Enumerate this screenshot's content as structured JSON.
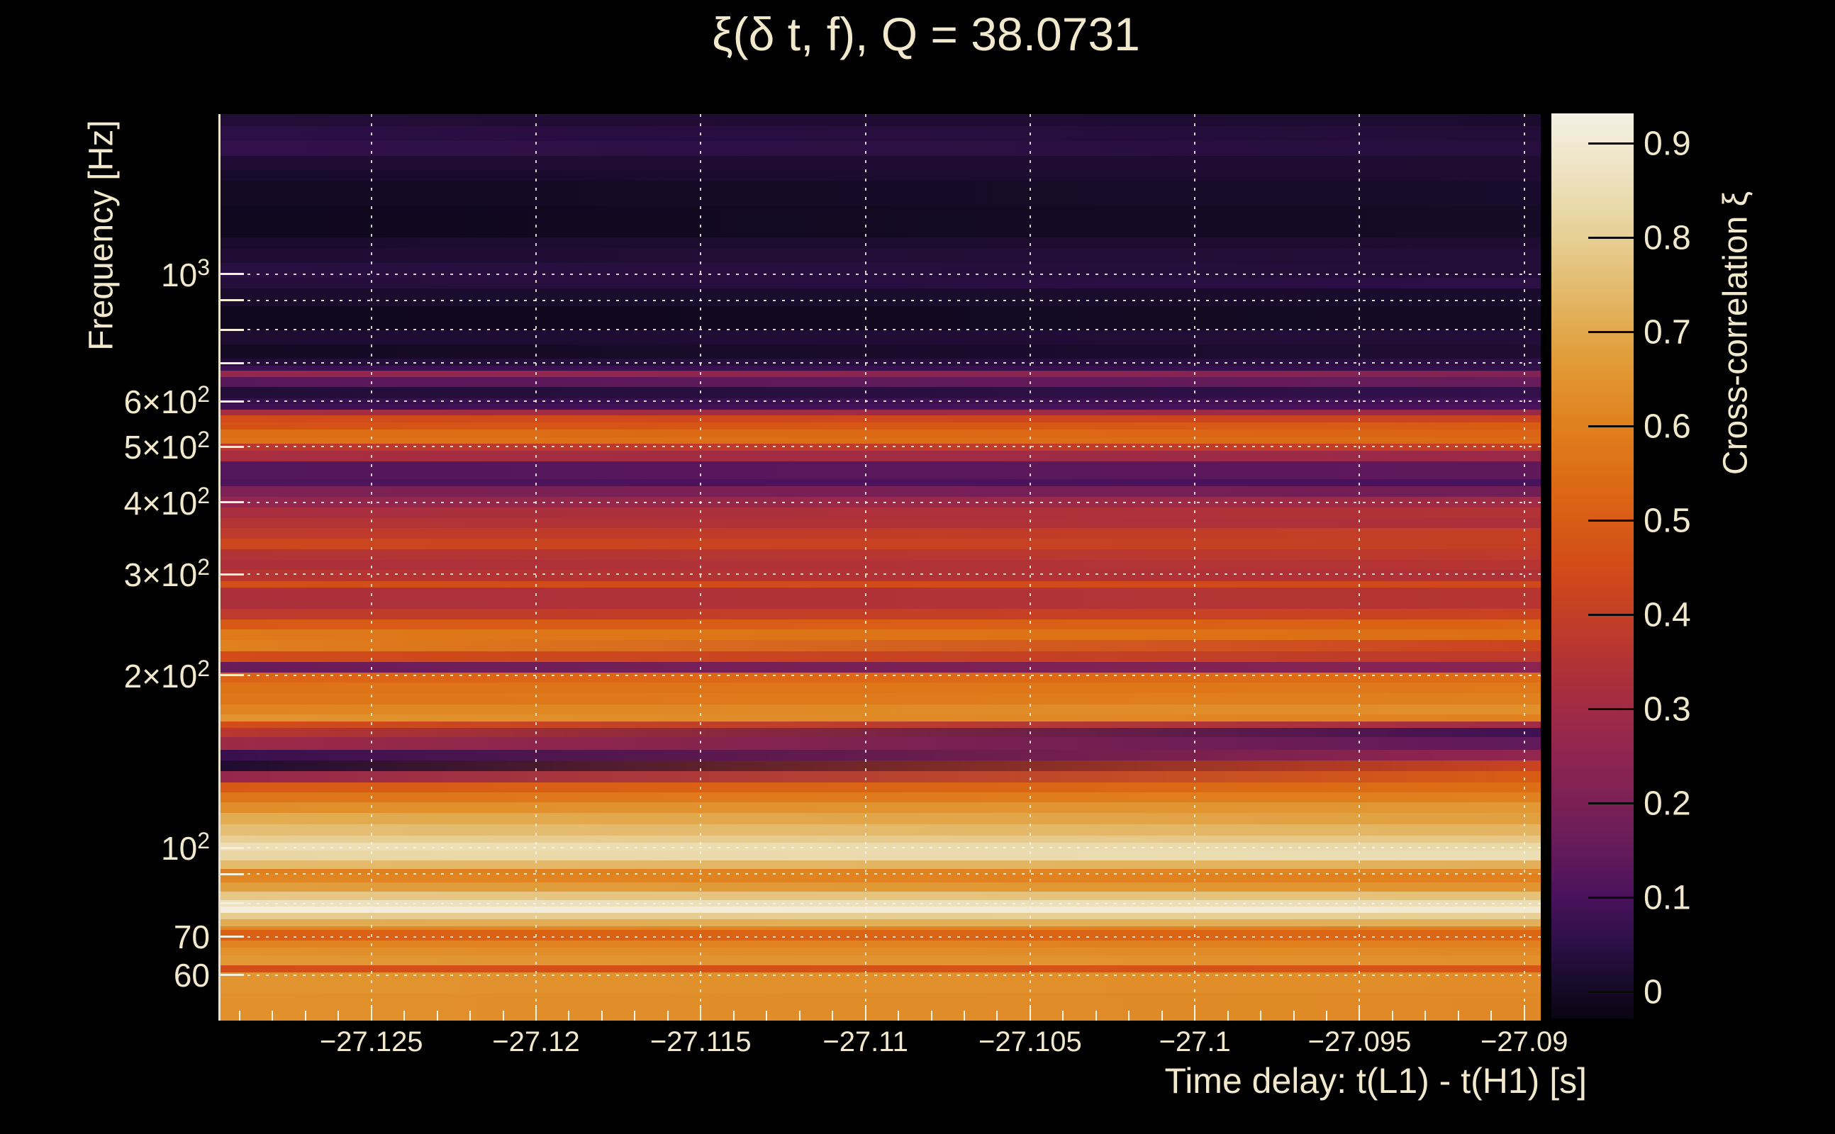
{
  "title": "ξ(δ t, f), Q = 38.0731",
  "colors": {
    "background": "#000000",
    "text": "#f2e9cd",
    "grid": "#f9f3e2",
    "axis_line": "#e9e2cf"
  },
  "chart_data": {
    "type": "heatmap",
    "title": "ξ(δ t, f), Q = 38.0731",
    "xlabel": "Time delay: t(L1) - t(H1) [s]",
    "ylabel": "Frequency [Hz]",
    "colorbar_label": "Cross-correlation ξ",
    "x_range": [
      -27.1296,
      -27.0895
    ],
    "y_range_hz": [
      50,
      1900
    ],
    "y_scale": "log",
    "grid": true,
    "x_ticks": [
      {
        "value": -27.125,
        "label": "−27.125"
      },
      {
        "value": -27.12,
        "label": "−27.12"
      },
      {
        "value": -27.115,
        "label": "−27.115"
      },
      {
        "value": -27.11,
        "label": "−27.11"
      },
      {
        "value": -27.105,
        "label": "−27.105"
      },
      {
        "value": -27.1,
        "label": "−27.1"
      },
      {
        "value": -27.095,
        "label": "−27.095"
      },
      {
        "value": -27.09,
        "label": "−27.09"
      }
    ],
    "x_minor_step": 0.001,
    "y_ticks": [
      {
        "f": 1000,
        "base": "10",
        "sup": "3"
      },
      {
        "f": 600,
        "base": "6×10",
        "sup": "2"
      },
      {
        "f": 500,
        "base": "5×10",
        "sup": "2"
      },
      {
        "f": 400,
        "base": "4×10",
        "sup": "2"
      },
      {
        "f": 300,
        "base": "3×10",
        "sup": "2"
      },
      {
        "f": 200,
        "base": "2×10",
        "sup": "2"
      },
      {
        "f": 100,
        "base": "10",
        "sup": "2"
      },
      {
        "f": 70,
        "base": "70",
        "sup": ""
      },
      {
        "f": 60,
        "base": "60",
        "sup": ""
      }
    ],
    "grid_freqs": [
      1000,
      900,
      800,
      700,
      600,
      500,
      400,
      300,
      200,
      100,
      90,
      80,
      70,
      60
    ],
    "colorbar": {
      "vmin": -0.028,
      "vmax": 0.932,
      "ticks": [
        {
          "v": 0.9,
          "label": "0.9"
        },
        {
          "v": 0.8,
          "label": "0.8"
        },
        {
          "v": 0.7,
          "label": "0.7"
        },
        {
          "v": 0.6,
          "label": "0.6"
        },
        {
          "v": 0.5,
          "label": "0.5"
        },
        {
          "v": 0.4,
          "label": "0.4"
        },
        {
          "v": 0.3,
          "label": "0.3"
        },
        {
          "v": 0.2,
          "label": "0.2"
        },
        {
          "v": 0.1,
          "label": "0.1"
        },
        {
          "v": 0.0,
          "label": "0"
        }
      ]
    },
    "colormap_stops": [
      [
        -0.028,
        "#0a0512"
      ],
      [
        0.0,
        "#140a24"
      ],
      [
        0.05,
        "#2c0f45"
      ],
      [
        0.1,
        "#49125c"
      ],
      [
        0.15,
        "#641b5b"
      ],
      [
        0.2,
        "#7a2055"
      ],
      [
        0.25,
        "#8e2550"
      ],
      [
        0.3,
        "#a12b45"
      ],
      [
        0.35,
        "#b23335"
      ],
      [
        0.4,
        "#c43e26"
      ],
      [
        0.45,
        "#d24b19"
      ],
      [
        0.5,
        "#d95c15"
      ],
      [
        0.55,
        "#dd6e15"
      ],
      [
        0.6,
        "#e0801e"
      ],
      [
        0.65,
        "#e1942f"
      ],
      [
        0.7,
        "#e1a84b"
      ],
      [
        0.75,
        "#e4bc70"
      ],
      [
        0.8,
        "#e7cf95"
      ],
      [
        0.85,
        "#ebdeb5"
      ],
      [
        0.9,
        "#f1e9d2"
      ],
      [
        0.932,
        "#f4f0e4"
      ]
    ],
    "rows_format": [
      "f_hi_hz",
      "f_lo_hz",
      "xi_left",
      "xi_right"
    ],
    "rows": [
      [
        1900,
        1812,
        0.03,
        0.015
      ],
      [
        1812,
        1704,
        0.05,
        0.03
      ],
      [
        1704,
        1608,
        0.06,
        0.04
      ],
      [
        1608,
        1516,
        0.025,
        0.02
      ],
      [
        1516,
        1455,
        0.01,
        0.02
      ],
      [
        1455,
        1316,
        0.0,
        0.01
      ],
      [
        1316,
        1157,
        -0.01,
        0.005
      ],
      [
        1157,
        1108,
        0.015,
        0.02
      ],
      [
        1108,
        1045,
        0.025,
        0.03
      ],
      [
        1045,
        986,
        0.045,
        0.03
      ],
      [
        986,
        945,
        0.035,
        0.05
      ],
      [
        945,
        879,
        0.015,
        0.01
      ],
      [
        879,
        798,
        -0.01,
        0.0
      ],
      [
        798,
        754,
        0.02,
        0.03
      ],
      [
        754,
        713,
        0.0,
        0.02
      ],
      [
        713,
        693,
        0.03,
        0.05
      ],
      [
        693,
        679,
        0.075,
        0.06
      ],
      [
        679,
        661,
        0.27,
        0.22
      ],
      [
        661,
        636,
        0.13,
        0.16
      ],
      [
        636,
        608,
        0.03,
        0.06
      ],
      [
        608,
        593,
        0.065,
        0.09
      ],
      [
        593,
        580,
        0.08,
        0.1
      ],
      [
        580,
        567,
        0.31,
        0.28
      ],
      [
        567,
        552,
        0.45,
        0.42
      ],
      [
        552,
        536,
        0.47,
        0.5
      ],
      [
        536,
        520,
        0.55,
        0.52
      ],
      [
        520,
        506,
        0.56,
        0.54
      ],
      [
        506,
        492,
        0.37,
        0.4
      ],
      [
        492,
        471,
        0.32,
        0.28
      ],
      [
        471,
        439,
        0.12,
        0.14
      ],
      [
        439,
        427,
        0.11,
        0.1
      ],
      [
        427,
        409,
        0.21,
        0.18
      ],
      [
        409,
        392,
        0.26,
        0.3
      ],
      [
        392,
        376,
        0.32,
        0.35
      ],
      [
        376,
        361,
        0.355,
        0.33
      ],
      [
        361,
        346,
        0.38,
        0.4
      ],
      [
        346,
        331,
        0.43,
        0.4
      ],
      [
        331,
        318,
        0.35,
        0.38
      ],
      [
        318,
        305,
        0.33,
        0.36
      ],
      [
        305,
        292,
        0.36,
        0.34
      ],
      [
        292,
        284,
        0.46,
        0.44
      ],
      [
        284,
        261,
        0.33,
        0.36
      ],
      [
        261,
        250,
        0.38,
        0.42
      ],
      [
        250,
        240,
        0.49,
        0.52
      ],
      [
        240,
        230,
        0.58,
        0.55
      ],
      [
        230,
        220,
        0.6,
        0.42
      ],
      [
        220,
        211,
        0.45,
        0.38
      ],
      [
        211,
        202,
        0.16,
        0.24
      ],
      [
        202,
        194,
        0.52,
        0.55
      ],
      [
        194,
        186,
        0.56,
        0.58
      ],
      [
        186,
        178,
        0.57,
        0.6
      ],
      [
        178,
        171,
        0.61,
        0.64
      ],
      [
        171,
        166,
        0.65,
        0.6
      ],
      [
        166,
        162,
        0.455,
        0.3
      ],
      [
        162,
        156,
        0.37,
        0.08
      ],
      [
        156,
        148,
        0.29,
        0.14
      ],
      [
        148,
        142,
        0.07,
        0.26
      ],
      [
        142,
        136,
        0.02,
        0.42
      ],
      [
        136,
        130,
        0.265,
        0.5
      ],
      [
        130,
        125,
        0.49,
        0.55
      ],
      [
        125,
        120,
        0.57,
        0.6
      ],
      [
        120,
        115,
        0.635,
        0.66
      ],
      [
        115,
        110,
        0.71,
        0.68
      ],
      [
        110,
        105,
        0.755,
        0.73
      ],
      [
        105,
        102,
        0.8,
        0.78
      ],
      [
        102,
        99,
        0.855,
        0.83
      ],
      [
        99,
        95,
        0.825,
        0.85
      ],
      [
        95,
        92,
        0.745,
        0.72
      ],
      [
        92,
        90,
        0.6,
        0.62
      ],
      [
        90,
        87,
        0.615,
        0.6
      ],
      [
        87,
        84,
        0.675,
        0.65
      ],
      [
        84,
        81,
        0.78,
        0.76
      ],
      [
        81,
        79,
        0.87,
        0.85
      ],
      [
        79,
        77,
        0.92,
        0.9
      ],
      [
        77,
        75,
        0.79,
        0.8
      ],
      [
        75,
        73,
        0.71,
        0.72
      ],
      [
        73,
        72,
        0.62,
        0.6
      ],
      [
        72,
        69,
        0.51,
        0.53
      ],
      [
        69,
        67,
        0.61,
        0.6
      ],
      [
        67,
        65,
        0.64,
        0.62
      ],
      [
        65,
        62.5,
        0.66,
        0.64
      ],
      [
        62.5,
        60.6,
        0.455,
        0.48
      ],
      [
        60.6,
        55.8,
        0.65,
        0.63
      ],
      [
        55.8,
        50,
        0.64,
        0.62
      ]
    ]
  }
}
